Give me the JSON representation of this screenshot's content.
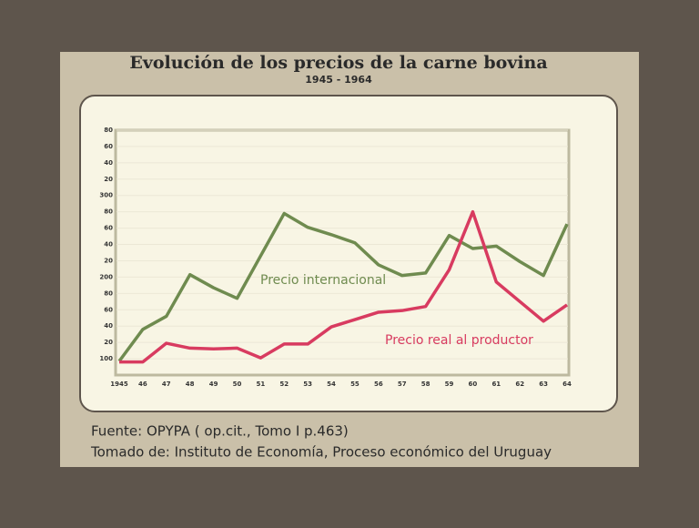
{
  "chart_data": {
    "type": "line",
    "title": "Evolución de los precios de la carne bovina",
    "subtitle": "1945 - 1964",
    "categories": [
      "1945",
      "46",
      "47",
      "48",
      "49",
      "50",
      "51",
      "52",
      "53",
      "54",
      "55",
      "56",
      "57",
      "58",
      "59",
      "60",
      "61",
      "62",
      "63",
      "64"
    ],
    "series": [
      {
        "name": "Precio internacional",
        "color": "#6f8b4f",
        "values": [
          97,
          136,
          152,
          203,
          187,
          174,
          226,
          278,
          261,
          252,
          242,
          215,
          202,
          205,
          251,
          235,
          238,
          219,
          202,
          265
        ]
      },
      {
        "name": "Precio real al productor",
        "color": "#d83b60",
        "values": [
          96,
          96,
          119,
          113,
          112,
          113,
          101,
          118,
          118,
          139,
          148,
          157,
          159,
          164,
          209,
          280,
          194,
          170,
          146,
          166
        ]
      }
    ],
    "ylim": [
      80,
      380
    ],
    "yticks": [
      {
        "value": 380,
        "label": "80"
      },
      {
        "value": 360,
        "label": "60"
      },
      {
        "value": 340,
        "label": "40"
      },
      {
        "value": 320,
        "label": "20"
      },
      300,
      {
        "value": 280,
        "label": "80"
      },
      {
        "value": 260,
        "label": "60"
      },
      {
        "value": 240,
        "label": "40"
      },
      {
        "value": 220,
        "label": "20"
      },
      200,
      {
        "value": 180,
        "label": "80"
      },
      {
        "value": 160,
        "label": "60"
      },
      {
        "value": 140,
        "label": "40"
      },
      {
        "value": 120,
        "label": "20"
      },
      100
    ],
    "grid": true,
    "source": [
      "Fuente: OPYPA ( op.cit., Tomo I p.463)",
      "Tomado de: Instituto de Economía, Proceso económico del Uruguay"
    ]
  }
}
